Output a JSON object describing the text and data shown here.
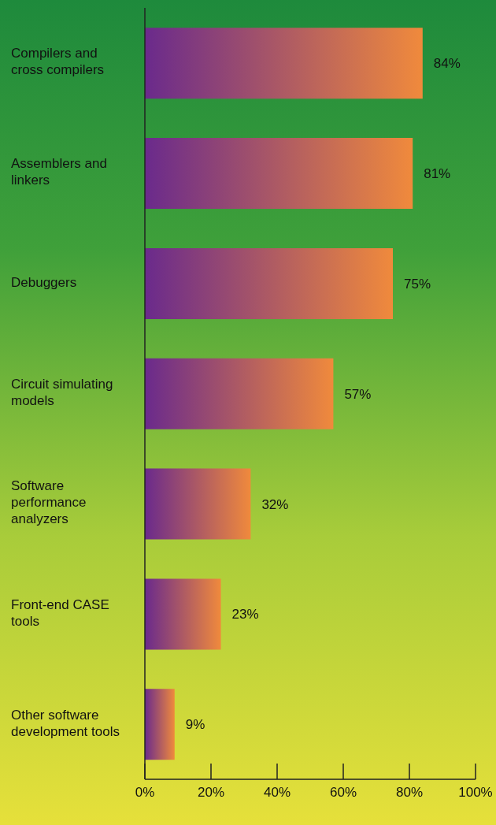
{
  "chart_data": {
    "type": "bar",
    "orientation": "horizontal",
    "categories": [
      "Compilers and cross compilers",
      "Assemblers and linkers",
      "Debuggers",
      "Circuit simulating models",
      "Software performance analyzers",
      "Front-end CASE tools",
      "Other software development tools"
    ],
    "values": [
      84,
      81,
      75,
      57,
      32,
      23,
      9
    ],
    "value_labels": [
      "84%",
      "81%",
      "75%",
      "57%",
      "32%",
      "23%",
      "9%"
    ],
    "color": "#f08a3c",
    "xlim": [
      0,
      100
    ],
    "xticks": [
      {
        "value": 0,
        "label": "0%"
      },
      {
        "value": 20,
        "label": "20%"
      },
      {
        "value": 40,
        "label": "40%"
      },
      {
        "value": 60,
        "label": "60%"
      },
      {
        "value": 80,
        "label": "80%"
      },
      {
        "value": 100,
        "label": "100%"
      }
    ],
    "grid": false,
    "legend": false
  }
}
